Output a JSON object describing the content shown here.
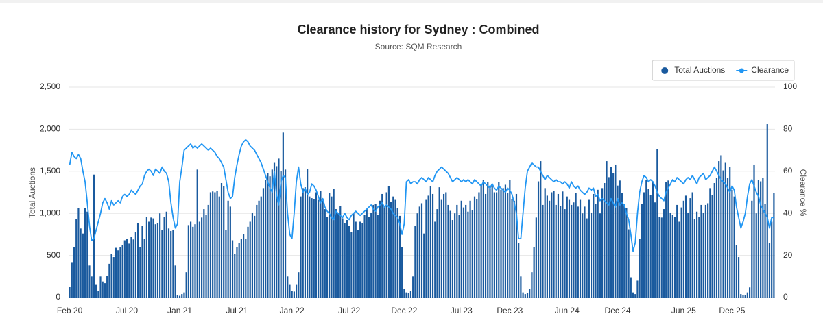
{
  "chart_data": {
    "type": "bar-line",
    "title": "Clearance history for Sydney : Combined",
    "subtitle": "Source: SQM Research",
    "y_label": "Total Auctions",
    "y2_label": "Clearance %",
    "legend": "top-right",
    "grid": true,
    "ylim": [
      0,
      2500
    ],
    "yticks": [
      0,
      500,
      {
        "value": 1000,
        "label": "1,000"
      },
      {
        "value": 1500,
        "label": "1,500"
      },
      {
        "value": 2000,
        "label": "2,000"
      },
      {
        "value": 2500,
        "label": "2,500"
      }
    ],
    "y2lim": [
      0,
      100
    ],
    "y2ticks": [
      0,
      20,
      40,
      60,
      80,
      100
    ],
    "categories": [
      "Feb 20",
      null,
      null,
      null,
      null,
      null,
      null,
      null,
      null,
      null,
      null,
      null,
      null,
      null,
      null,
      null,
      null,
      null,
      null,
      null,
      null,
      null,
      null,
      null,
      null,
      null,
      "Jul 20",
      null,
      null,
      null,
      null,
      null,
      null,
      null,
      null,
      null,
      null,
      null,
      null,
      null,
      null,
      null,
      null,
      null,
      null,
      null,
      null,
      null,
      null,
      null,
      "Jan 21",
      null,
      null,
      null,
      null,
      null,
      null,
      null,
      null,
      null,
      null,
      null,
      null,
      null,
      null,
      null,
      null,
      null,
      null,
      null,
      null,
      null,
      null,
      null,
      null,
      null,
      "Jul 21",
      null,
      null,
      null,
      null,
      null,
      null,
      null,
      null,
      null,
      null,
      null,
      null,
      null,
      null,
      null,
      null,
      null,
      null,
      null,
      null,
      null,
      null,
      null,
      null,
      "Jan 22",
      null,
      null,
      null,
      null,
      null,
      null,
      null,
      null,
      null,
      null,
      null,
      null,
      null,
      null,
      null,
      null,
      null,
      null,
      null,
      null,
      null,
      null,
      null,
      null,
      null,
      "Jul 22",
      null,
      null,
      null,
      null,
      null,
      null,
      null,
      null,
      null,
      null,
      null,
      null,
      null,
      null,
      null,
      null,
      null,
      null,
      null,
      null,
      null,
      null,
      null,
      null,
      "Dec 22",
      null,
      null,
      null,
      null,
      null,
      null,
      null,
      null,
      null,
      null,
      null,
      null,
      null,
      null,
      null,
      null,
      null,
      null,
      null,
      null,
      null,
      null,
      null,
      null,
      null,
      "Jul 23",
      null,
      null,
      null,
      null,
      null,
      null,
      null,
      null,
      null,
      null,
      null,
      null,
      null,
      null,
      null,
      null,
      null,
      null,
      null,
      null,
      null,
      "Dec 23",
      null,
      null,
      null,
      null,
      null,
      null,
      null,
      null,
      null,
      null,
      null,
      null,
      null,
      null,
      null,
      null,
      null,
      null,
      null,
      null,
      null,
      null,
      null,
      null,
      null,
      "Jun 24",
      null,
      null,
      null,
      null,
      null,
      null,
      null,
      null,
      null,
      null,
      null,
      null,
      null,
      null,
      null,
      null,
      null,
      null,
      null,
      null,
      null,
      null,
      "Dec 24",
      null,
      null,
      null,
      null,
      null,
      null,
      null,
      null,
      null,
      null,
      null,
      null,
      null,
      null,
      null,
      null,
      null,
      null,
      null,
      null,
      null,
      null,
      null,
      null,
      null,
      null,
      null,
      null,
      null,
      "Jun 25",
      null,
      null,
      null,
      null,
      null,
      null,
      null,
      null,
      null,
      null,
      null,
      null,
      null,
      null,
      null,
      null,
      null,
      null,
      null,
      null,
      null,
      "Dec 25",
      null,
      null,
      null,
      null,
      null,
      null,
      null,
      null,
      null,
      null,
      null,
      null,
      null,
      null,
      null,
      null,
      null,
      null,
      null
    ],
    "series": [
      {
        "name": "Total Auctions",
        "color": "#1a5a9e",
        "values": [
          130,
          420,
          600,
          930,
          1060,
          820,
          760,
          1060,
          1020,
          380,
          250,
          1460,
          150,
          80,
          250,
          190,
          170,
          260,
          400,
          520,
          480,
          590,
          560,
          600,
          620,
          680,
          700,
          640,
          720,
          690,
          780,
          880,
          600,
          850,
          700,
          960,
          900,
          950,
          940,
          870,
          880,
          1000,
          800,
          960,
          1020,
          820,
          790,
          800,
          380,
          30,
          20,
          40,
          60,
          300,
          860,
          900,
          840,
          870,
          1520,
          900,
          950,
          1050,
          980,
          1100,
          1250,
          1260,
          1250,
          1270,
          1200,
          1360,
          1320,
          800,
          1150,
          1080,
          680,
          520,
          600,
          650,
          700,
          750,
          700,
          840,
          900,
          1010,
          970,
          1100,
          1150,
          1200,
          1300,
          1400,
          1480,
          1440,
          1520,
          1600,
          1560,
          1650,
          1500,
          1960,
          1520,
          250,
          150,
          80,
          70,
          150,
          300,
          1200,
          1300,
          1310,
          1530,
          1200,
          1180,
          1170,
          1250,
          1160,
          1270,
          1150,
          1050,
          960,
          1240,
          1200,
          1290,
          1050,
          1000,
          1090,
          940,
          880,
          920,
          850,
          780,
          1000,
          900,
          800,
          900,
          880,
          980,
          1050,
          960,
          1010,
          1100,
          1110,
          980,
          1150,
          1230,
          1080,
          1250,
          1320,
          1140,
          1200,
          1160,
          1060,
          970,
          600,
          100,
          60,
          50,
          80,
          250,
          850,
          1000,
          1080,
          1120,
          760,
          1160,
          1210,
          1320,
          1230,
          900,
          1050,
          1310,
          1160,
          1230,
          1250,
          1100,
          1030,
          920,
          1000,
          1100,
          980,
          1150,
          1070,
          1100,
          1020,
          1150,
          1040,
          1200,
          1170,
          1250,
          1350,
          1400,
          1230,
          1370,
          1330,
          1320,
          1250,
          1250,
          1370,
          1280,
          1300,
          1340,
          1240,
          1400,
          1170,
          1150,
          1230,
          650,
          250,
          60,
          40,
          50,
          100,
          300,
          600,
          950,
          1380,
          1620,
          1100,
          1300,
          1210,
          1150,
          1250,
          1270,
          1100,
          1230,
          1090,
          1260,
          1050,
          1200,
          1160,
          1100,
          1130,
          1240,
          1080,
          1160,
          1000,
          1080,
          940,
          1160,
          1010,
          1230,
          1110,
          1280,
          1000,
          1300,
          1360,
          1620,
          1430,
          1550,
          1480,
          1580,
          1330,
          1390,
          1240,
          1110,
          1060,
          810,
          240,
          60,
          40,
          200,
          700,
          1110,
          1250,
          1400,
          1290,
          1220,
          1380,
          1130,
          1760,
          960,
          950,
          1050,
          1370,
          1390,
          1010,
          980,
          960,
          1100,
          900,
          1070,
          1150,
          1210,
          1010,
          1180,
          1250,
          930,
          1020,
          960,
          1100,
          1010,
          1100,
          1120,
          1300,
          1220,
          1360,
          1420,
          1620,
          1690,
          1510,
          1600,
          1420,
          1550,
          1280,
          1200,
          620,
          480,
          40,
          30,
          30,
          60,
          120,
          1150,
          1580,
          1000,
          1400,
          1380,
          1420,
          1110,
          2060,
          650,
          900,
          1240
        ]
      },
      {
        "name": "Clearance",
        "color": "#2196f3",
        "axis": "y2",
        "values": [
          63,
          69,
          67,
          66,
          68,
          66,
          60,
          55,
          45,
          34,
          27,
          28,
          32,
          36,
          40,
          45,
          47,
          45,
          42,
          46,
          44,
          45,
          46,
          45,
          48,
          49,
          48,
          49,
          51,
          50,
          49,
          51,
          53,
          54,
          58,
          60,
          61,
          60,
          58,
          61,
          60,
          59,
          62,
          60,
          59,
          55,
          45,
          38,
          33,
          35,
          55,
          62,
          70,
          71,
          72,
          73,
          71,
          72,
          71,
          72,
          73,
          72,
          71,
          70,
          71,
          70,
          69,
          67,
          66,
          64,
          62,
          56,
          50,
          47,
          48,
          57,
          63,
          68,
          72,
          74,
          75,
          74,
          72,
          71,
          70,
          68,
          66,
          64,
          61,
          58,
          55,
          52,
          50,
          60,
          49,
          44,
          55,
          58,
          57,
          40,
          30,
          28,
          40,
          55,
          62,
          54,
          50,
          52,
          49,
          50,
          54,
          53,
          51,
          48,
          45,
          47,
          43,
          41,
          40,
          38,
          37,
          41,
          40,
          39,
          38,
          40,
          38,
          37,
          39,
          40,
          41,
          40,
          39,
          40,
          41,
          42,
          43,
          44,
          42,
          41,
          43,
          44,
          45,
          43,
          44,
          43,
          42,
          40,
          39,
          38,
          35,
          30,
          35,
          55,
          56,
          54,
          55,
          55,
          54,
          56,
          57,
          56,
          55,
          57,
          56,
          55,
          58,
          60,
          61,
          62,
          61,
          60,
          59,
          57,
          55,
          56,
          57,
          56,
          55,
          56,
          55,
          56,
          55,
          54,
          56,
          55,
          54,
          53,
          55,
          54,
          53,
          52,
          54,
          52,
          51,
          53,
          52,
          51,
          50,
          52,
          51,
          49,
          45,
          40,
          28,
          28,
          40,
          52,
          60,
          62,
          64,
          63,
          62,
          62,
          60,
          58,
          56,
          58,
          57,
          56,
          55,
          56,
          55,
          55,
          54,
          55,
          54,
          52,
          55,
          53,
          52,
          53,
          51,
          50,
          49,
          50,
          52,
          51,
          52,
          48,
          49,
          46,
          47,
          46,
          45,
          44,
          47,
          45,
          43,
          47,
          44,
          45,
          44,
          40,
          37,
          30,
          22,
          26,
          40,
          50,
          55,
          58,
          57,
          55,
          56,
          55,
          53,
          50,
          48,
          47,
          46,
          50,
          52,
          54,
          56,
          55,
          57,
          56,
          55,
          54,
          56,
          57,
          56,
          58,
          56,
          54,
          57,
          58,
          59,
          56,
          57,
          58,
          60,
          62,
          60,
          58,
          56,
          55,
          54,
          52,
          50,
          53,
          51,
          43,
          38,
          33,
          36,
          40,
          48,
          54,
          56,
          53,
          50,
          48,
          44,
          42,
          40,
          38,
          33,
          38,
          38
        ]
      }
    ]
  }
}
